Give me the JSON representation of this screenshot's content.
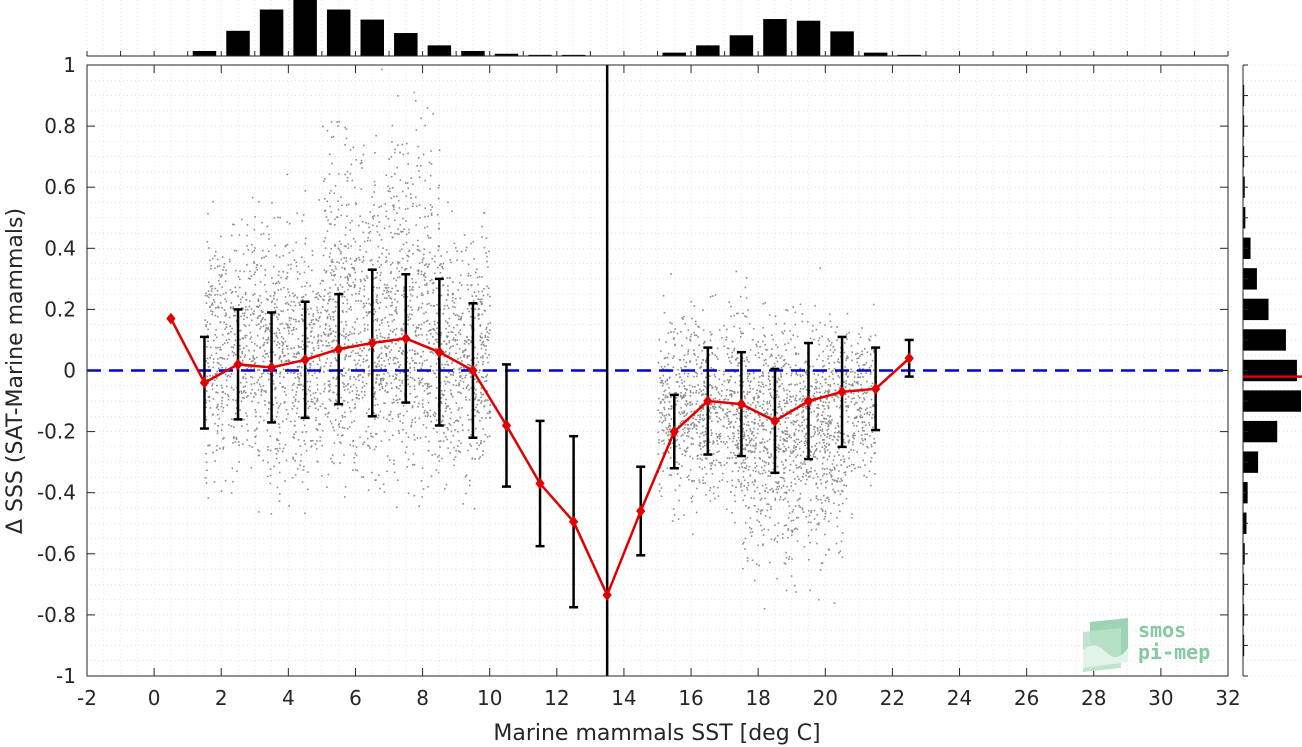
{
  "chart_data": {
    "type": "scatter",
    "xlabel": "Marine mammals SST [deg C]",
    "ylabel": "Δ SSS (SAT-Marine mammals)",
    "xlim": [
      -2,
      32
    ],
    "ylim": [
      -1,
      1
    ],
    "xticks": [
      "-2",
      "0",
      "2",
      "4",
      "6",
      "8",
      "10",
      "12",
      "14",
      "16",
      "18",
      "20",
      "22",
      "24",
      "26",
      "28",
      "30",
      "32"
    ],
    "yticks": [
      "1",
      "0.8",
      "0.6",
      "0.4",
      "0.2",
      "0",
      "-0.2",
      "-0.4",
      "-0.6",
      "-0.8",
      "-1"
    ],
    "grid": true,
    "zero_line": {
      "y": 0,
      "style": "dashed",
      "color": "#0000e0"
    },
    "vertical_line": {
      "x": 13.5,
      "color": "#000000"
    },
    "binned_mean": {
      "color": "#e00000",
      "x": [
        0.5,
        1.5,
        2.5,
        3.5,
        4.5,
        5.5,
        6.5,
        7.5,
        8.5,
        9.5,
        10.5,
        11.5,
        12.5,
        13.5,
        14.5,
        15.5,
        16.5,
        17.5,
        18.5,
        19.5,
        20.5,
        21.5,
        22.5
      ],
      "y": [
        0.17,
        -0.04,
        0.02,
        0.01,
        0.035,
        0.07,
        0.09,
        0.105,
        0.06,
        0.0,
        -0.18,
        -0.37,
        -0.495,
        -0.735,
        -0.46,
        -0.2,
        -0.1,
        -0.11,
        -0.165,
        -0.1,
        -0.07,
        -0.06,
        0.04
      ],
      "std": [
        0.0,
        0.15,
        0.18,
        0.18,
        0.19,
        0.18,
        0.24,
        0.21,
        0.24,
        0.22,
        0.2,
        0.205,
        0.28,
        0.0,
        0.145,
        0.12,
        0.175,
        0.17,
        0.17,
        0.19,
        0.18,
        0.135,
        0.06
      ]
    },
    "scatter_clusters": [
      {
        "x_range": [
          1.5,
          10.0
        ],
        "y_center": 0.06,
        "y_spread": 0.2,
        "count": 2600
      },
      {
        "x_range": [
          15.0,
          21.5
        ],
        "y_center": -0.12,
        "y_spread": 0.15,
        "count": 1900
      },
      {
        "x_range": [
          5.0,
          8.5
        ],
        "y_center": 0.45,
        "y_spread": 0.2,
        "count": 350
      },
      {
        "x_range": [
          17.5,
          20.5
        ],
        "y_center": -0.4,
        "y_spread": 0.15,
        "count": 300
      }
    ],
    "top_histogram": {
      "x": [
        1.5,
        2.5,
        3.5,
        4.5,
        5.5,
        6.5,
        7.5,
        8.5,
        9.5,
        10.5,
        11.5,
        12.5,
        15.5,
        16.5,
        17.5,
        18.5,
        19.5,
        20.5,
        21.5,
        22.5
      ],
      "counts": [
        0.09,
        0.45,
        0.83,
        1.0,
        0.83,
        0.65,
        0.41,
        0.19,
        0.09,
        0.04,
        0.02,
        0.02,
        0.06,
        0.19,
        0.37,
        0.66,
        0.63,
        0.44,
        0.06,
        0.02
      ]
    },
    "right_histogram": {
      "y": [
        -0.9,
        -0.8,
        -0.7,
        -0.6,
        -0.5,
        -0.4,
        -0.3,
        -0.2,
        -0.1,
        0.0,
        0.1,
        0.2,
        0.3,
        0.4,
        0.5,
        0.6,
        0.7,
        0.8,
        0.9
      ],
      "counts": [
        0.02,
        0.02,
        0.02,
        0.03,
        0.06,
        0.08,
        0.26,
        0.59,
        1.0,
        0.93,
        0.74,
        0.44,
        0.24,
        0.13,
        0.04,
        0.03,
        0.02,
        0.02,
        0.02
      ],
      "median_line_y": -0.02,
      "median_color": "#e00000"
    }
  },
  "logo": {
    "line1": "smos",
    "line2": "pi-mep"
  }
}
